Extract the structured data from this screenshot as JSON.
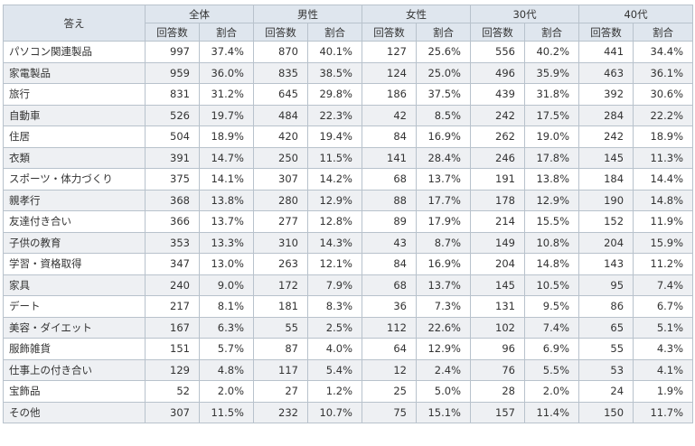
{
  "header": {
    "answer_label": "答え",
    "groups": [
      "全体",
      "男性",
      "女性",
      "30代",
      "40代"
    ],
    "count_label": "回答数",
    "ratio_label": "割合"
  },
  "rows": [
    {
      "answer": "パソコン関連製品",
      "cells": [
        "997",
        "37.4%",
        "870",
        "40.1%",
        "127",
        "25.6%",
        "556",
        "40.2%",
        "441",
        "34.4%"
      ]
    },
    {
      "answer": "家電製品",
      "cells": [
        "959",
        "36.0%",
        "835",
        "38.5%",
        "124",
        "25.0%",
        "496",
        "35.9%",
        "463",
        "36.1%"
      ]
    },
    {
      "answer": "旅行",
      "cells": [
        "831",
        "31.2%",
        "645",
        "29.8%",
        "186",
        "37.5%",
        "439",
        "31.8%",
        "392",
        "30.6%"
      ]
    },
    {
      "answer": "自動車",
      "cells": [
        "526",
        "19.7%",
        "484",
        "22.3%",
        "42",
        "8.5%",
        "242",
        "17.5%",
        "284",
        "22.2%"
      ]
    },
    {
      "answer": "住居",
      "cells": [
        "504",
        "18.9%",
        "420",
        "19.4%",
        "84",
        "16.9%",
        "262",
        "19.0%",
        "242",
        "18.9%"
      ]
    },
    {
      "answer": "衣類",
      "cells": [
        "391",
        "14.7%",
        "250",
        "11.5%",
        "141",
        "28.4%",
        "246",
        "17.8%",
        "145",
        "11.3%"
      ]
    },
    {
      "answer": "スポーツ・体力づくり",
      "cells": [
        "375",
        "14.1%",
        "307",
        "14.2%",
        "68",
        "13.7%",
        "191",
        "13.8%",
        "184",
        "14.4%"
      ]
    },
    {
      "answer": "親孝行",
      "cells": [
        "368",
        "13.8%",
        "280",
        "12.9%",
        "88",
        "17.7%",
        "178",
        "12.9%",
        "190",
        "14.8%"
      ]
    },
    {
      "answer": "友達付き合い",
      "cells": [
        "366",
        "13.7%",
        "277",
        "12.8%",
        "89",
        "17.9%",
        "214",
        "15.5%",
        "152",
        "11.9%"
      ]
    },
    {
      "answer": "子供の教育",
      "cells": [
        "353",
        "13.3%",
        "310",
        "14.3%",
        "43",
        "8.7%",
        "149",
        "10.8%",
        "204",
        "15.9%"
      ]
    },
    {
      "answer": "学習・資格取得",
      "cells": [
        "347",
        "13.0%",
        "263",
        "12.1%",
        "84",
        "16.9%",
        "204",
        "14.8%",
        "143",
        "11.2%"
      ]
    },
    {
      "answer": "家具",
      "cells": [
        "240",
        "9.0%",
        "172",
        "7.9%",
        "68",
        "13.7%",
        "145",
        "10.5%",
        "95",
        "7.4%"
      ]
    },
    {
      "answer": "デート",
      "cells": [
        "217",
        "8.1%",
        "181",
        "8.3%",
        "36",
        "7.3%",
        "131",
        "9.5%",
        "86",
        "6.7%"
      ]
    },
    {
      "answer": "美容・ダイエット",
      "cells": [
        "167",
        "6.3%",
        "55",
        "2.5%",
        "112",
        "22.6%",
        "102",
        "7.4%",
        "65",
        "5.1%"
      ]
    },
    {
      "answer": "服飾雑貨",
      "cells": [
        "151",
        "5.7%",
        "87",
        "4.0%",
        "64",
        "12.9%",
        "96",
        "6.9%",
        "55",
        "4.3%"
      ]
    },
    {
      "answer": "仕事上の付き合い",
      "cells": [
        "129",
        "4.8%",
        "117",
        "5.4%",
        "12",
        "2.4%",
        "76",
        "5.5%",
        "53",
        "4.1%"
      ]
    },
    {
      "answer": "宝飾品",
      "cells": [
        "52",
        "2.0%",
        "27",
        "1.2%",
        "25",
        "5.0%",
        "28",
        "2.0%",
        "24",
        "1.9%"
      ]
    },
    {
      "answer": "その他",
      "cells": [
        "307",
        "11.5%",
        "232",
        "10.7%",
        "75",
        "15.1%",
        "157",
        "11.4%",
        "150",
        "11.7%"
      ]
    }
  ]
}
